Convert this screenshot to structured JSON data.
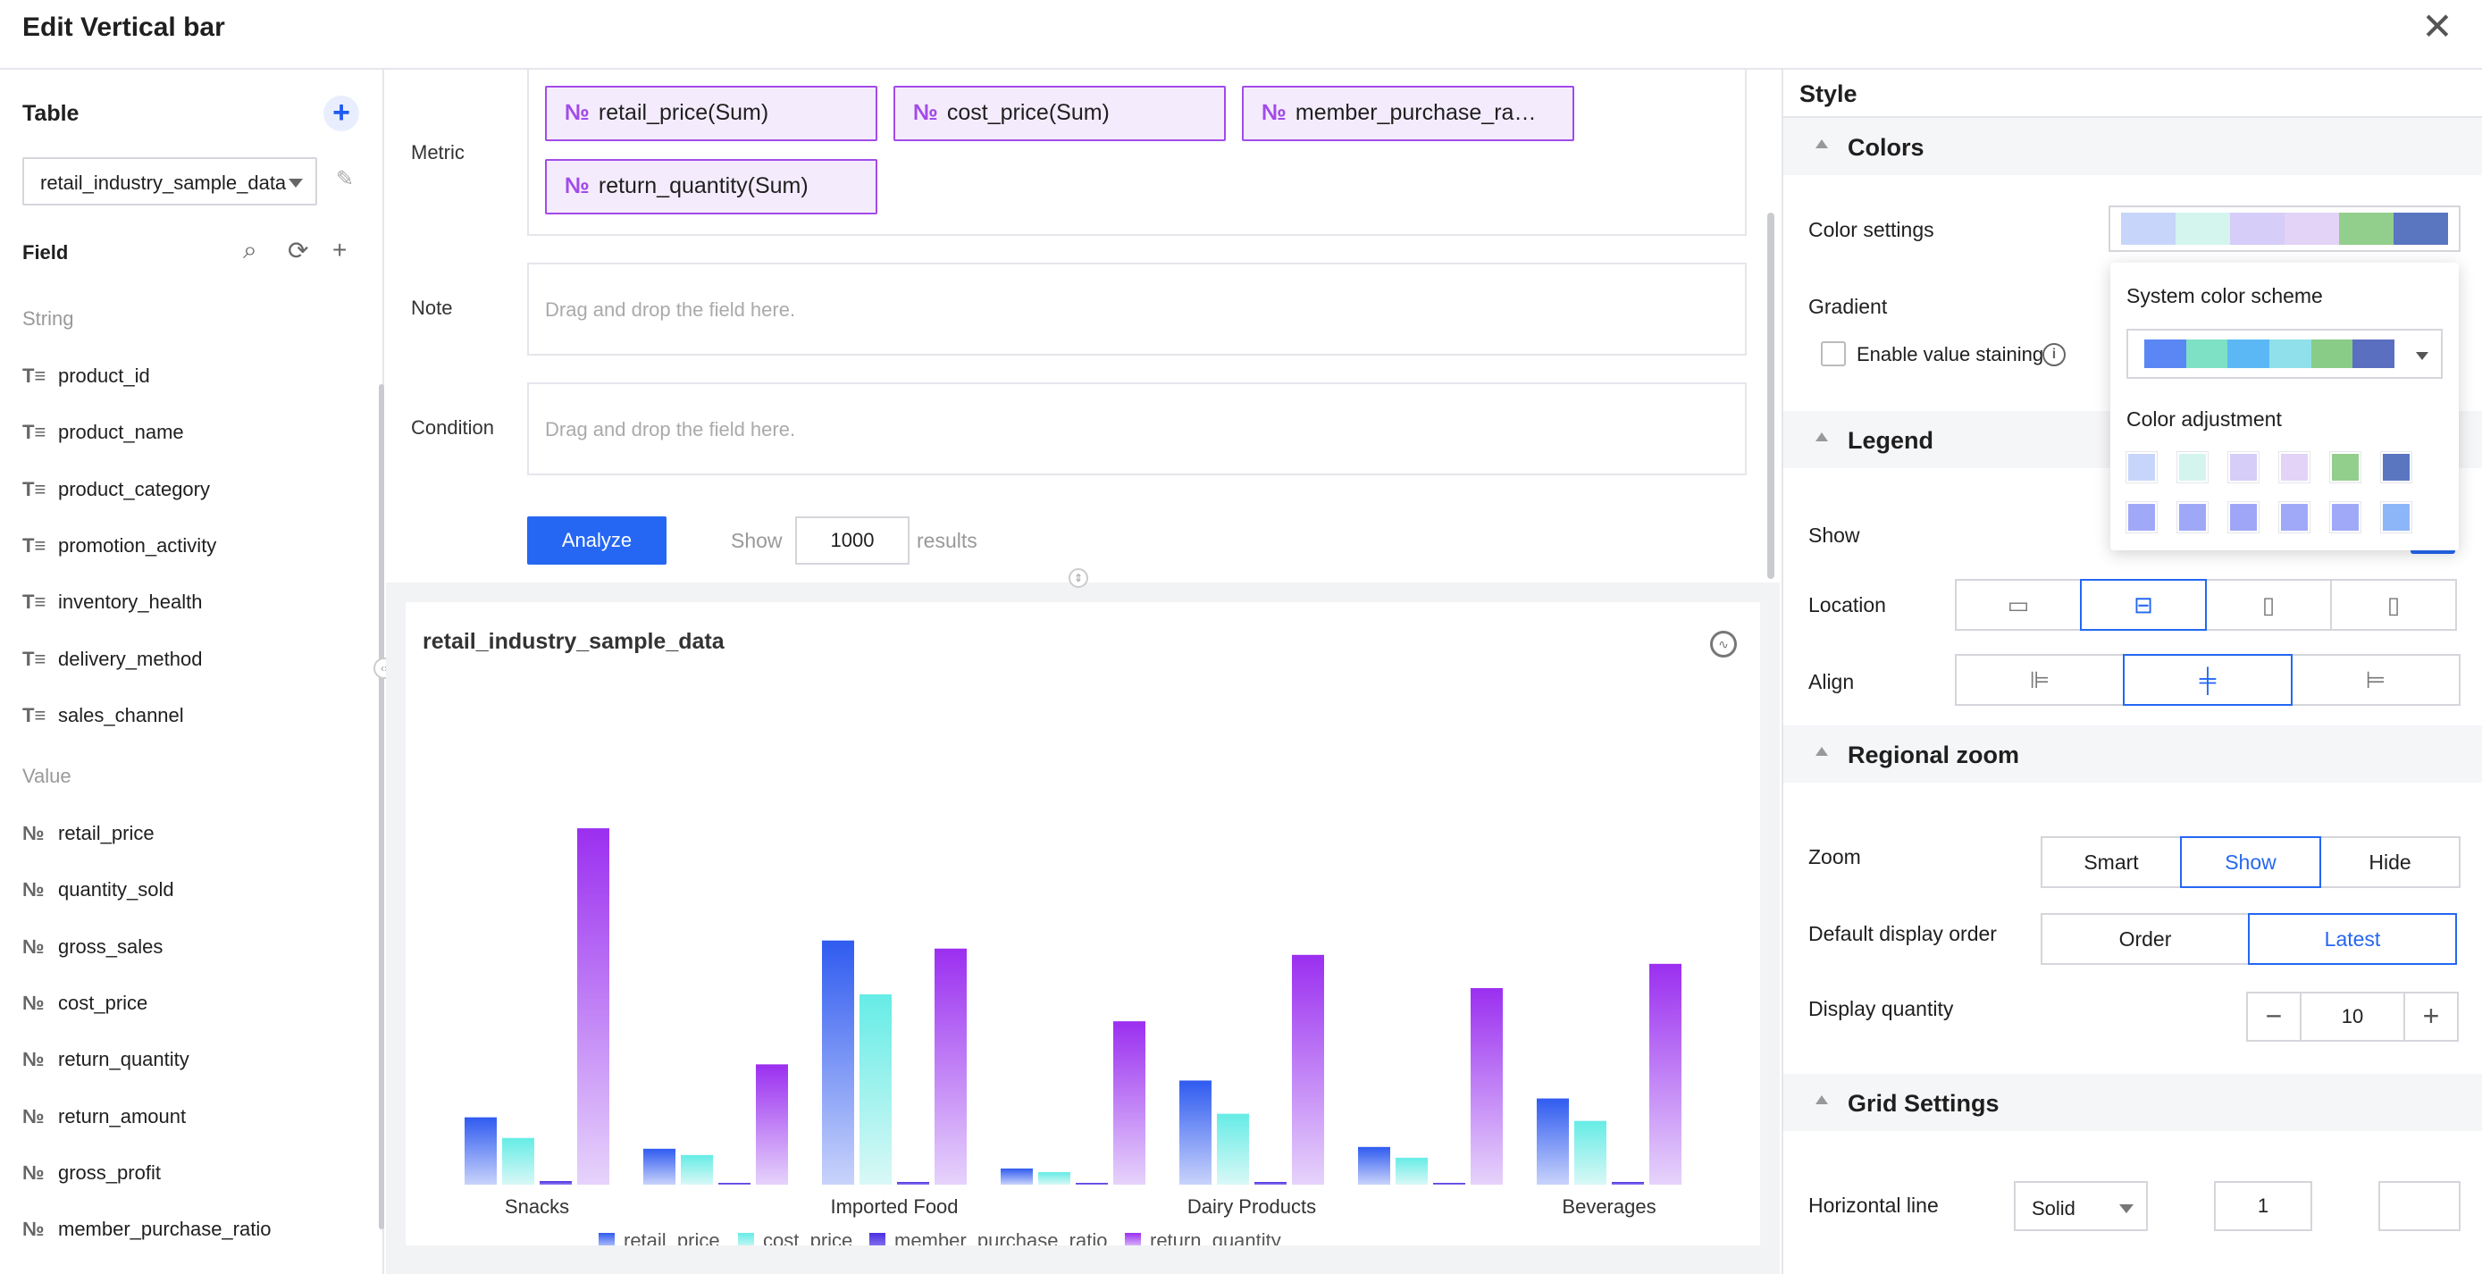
{
  "header": {
    "title": "Edit Vertical bar",
    "close": "✕"
  },
  "left": {
    "table_title": "Table",
    "add_label": "+",
    "table_value": "retail_industry_sample_data",
    "field_title": "Field",
    "string_label": "String",
    "value_label": "Value",
    "string_icon": "T≡",
    "number_icon": "№",
    "string_fields": [
      "product_id",
      "product_name",
      "product_category",
      "promotion_activity",
      "inventory_health",
      "delivery_method",
      "sales_channel"
    ],
    "value_fields": [
      "retail_price",
      "quantity_sold",
      "gross_sales",
      "cost_price",
      "return_quantity",
      "return_amount",
      "gross_profit",
      "member_purchase_ratio"
    ]
  },
  "query": {
    "metric_label": "Metric",
    "note_label": "Note",
    "condition_label": "Condition",
    "metric_pills": [
      "retail_price(Sum)",
      "cost_price(Sum)",
      "member_purchase_ra…",
      "return_quantity(Sum)"
    ],
    "drop_hint": "Drag and drop the field here.",
    "analyze_label": "Analyze",
    "show_label": "Show",
    "show_value": "1000",
    "results_label": "results"
  },
  "chart_data": {
    "type": "bar",
    "title": "retail_industry_sample_data",
    "categories": [
      "Snacks",
      "",
      "Imported Food",
      "",
      "Dairy Products",
      "",
      "Beverages"
    ],
    "x_tick_labels": [
      "Snacks",
      "Imported Food",
      "Dairy Products",
      "Beverages"
    ],
    "series": [
      {
        "name": "retail_price",
        "values": [
          75,
          40,
          272,
          18,
          116,
          42,
          96
        ]
      },
      {
        "name": "cost_price",
        "values": [
          52,
          33,
          212,
          14,
          79,
          30,
          71
        ]
      },
      {
        "name": "member_purchase_ratio",
        "values": [
          4,
          2,
          3,
          2,
          3,
          2,
          3
        ]
      },
      {
        "name": "return_quantity",
        "values": [
          397,
          134,
          263,
          182,
          256,
          219,
          246
        ]
      }
    ],
    "colors": {
      "retail_price": [
        "#2f5bf0",
        "#c9d3fb"
      ],
      "cost_price": [
        "#66ece6",
        "#d9f8f6"
      ],
      "member_purchase_ratio": [
        "#4a2ee0",
        "#8e7ff0"
      ],
      "return_quantity": [
        "#9b2ff0",
        "#e6d3fb"
      ]
    },
    "ylim": [
      0,
      420
    ],
    "legend": "bottom"
  },
  "right": {
    "tab_style": "Style",
    "colors_section": "Colors",
    "color_settings_label": "Color settings",
    "gradient_label": "Gradient",
    "enable_staining_label": "Enable value staining",
    "legend_section": "Legend",
    "show_label": "Show",
    "location_label": "Location",
    "align_label": "Align",
    "regional_zoom_section": "Regional zoom",
    "zoom_label": "Zoom",
    "zoom_options": [
      "Smart",
      "Show",
      "Hide"
    ],
    "order_label": "Default display order",
    "order_options": [
      "Order",
      "Latest"
    ],
    "quantity_label": "Display quantity",
    "quantity_value": "10",
    "minus": "−",
    "plus": "+",
    "grid_section": "Grid Settings",
    "horizontal_label": "Horizontal line",
    "line_style": "Solid",
    "line_width": "1",
    "palette": [
      "#c8d5fb",
      "#d3f5ee",
      "#d6cdf9",
      "#e3d3f7",
      "#93cf8c",
      "#5b76c1"
    ]
  },
  "popover": {
    "system_title": "System color scheme",
    "adjust_title": "Color adjustment",
    "scheme_colors": [
      "#5b87f5",
      "#7ee0c4",
      "#5cb8f5",
      "#8fe0ea",
      "#88cc88",
      "#5b6fc1"
    ],
    "adjust_colors": [
      "#c8d5fb",
      "#d3f5ee",
      "#d6cdf9",
      "#e3d3f7",
      "#93cf8c",
      "#5b76c1",
      "#a0a8f8",
      "#9ea8f7",
      "#9fa6f7",
      "#a0a8f8",
      "#9fa9f8",
      "#8db6f8"
    ]
  }
}
